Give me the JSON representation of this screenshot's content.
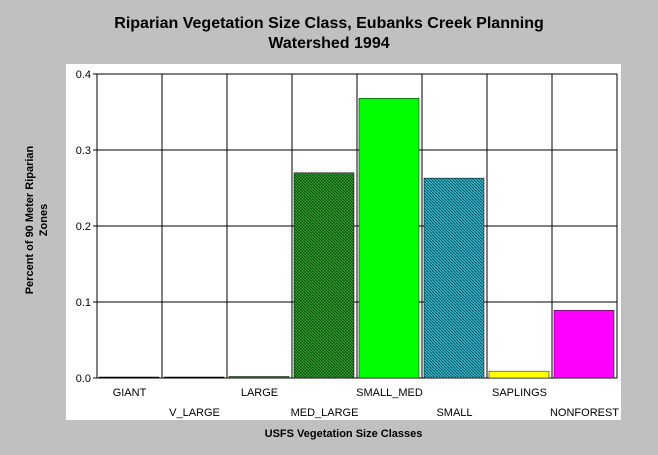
{
  "chart_data": {
    "type": "bar",
    "title_line1": "Riparian Vegetation Size Class, Eubanks Creek Planning",
    "title_line2": "Watershed 1994",
    "xlabel": "USFS Vegetation Size Classes",
    "ylabel_line1": "Percent of 90 Meter Riparian",
    "ylabel_line2": "Zones",
    "ylim": [
      0,
      0.4
    ],
    "yticks": [
      "0.0",
      "0.1",
      "0.2",
      "0.3",
      "0.4"
    ],
    "categories": [
      "GIANT",
      "V_LARGE",
      "LARGE",
      "MED_LARGE",
      "SMALL_MED",
      "SMALL",
      "SAPLINGS",
      "NONFOREST"
    ],
    "values": [
      0.0,
      0.0,
      0.002,
      0.27,
      0.368,
      0.263,
      0.009,
      0.089
    ],
    "colors": [
      "#000000",
      "#000000",
      "#228b22",
      "#1e8c1e",
      "#00ff00",
      "#20a0b0",
      "#ffff00",
      "#ff00ff"
    ],
    "patterns": [
      "solid",
      "solid",
      "solid",
      "hatch-dark",
      "solid",
      "hatch-teal",
      "solid",
      "solid"
    ],
    "grid": true,
    "legend": "none"
  }
}
